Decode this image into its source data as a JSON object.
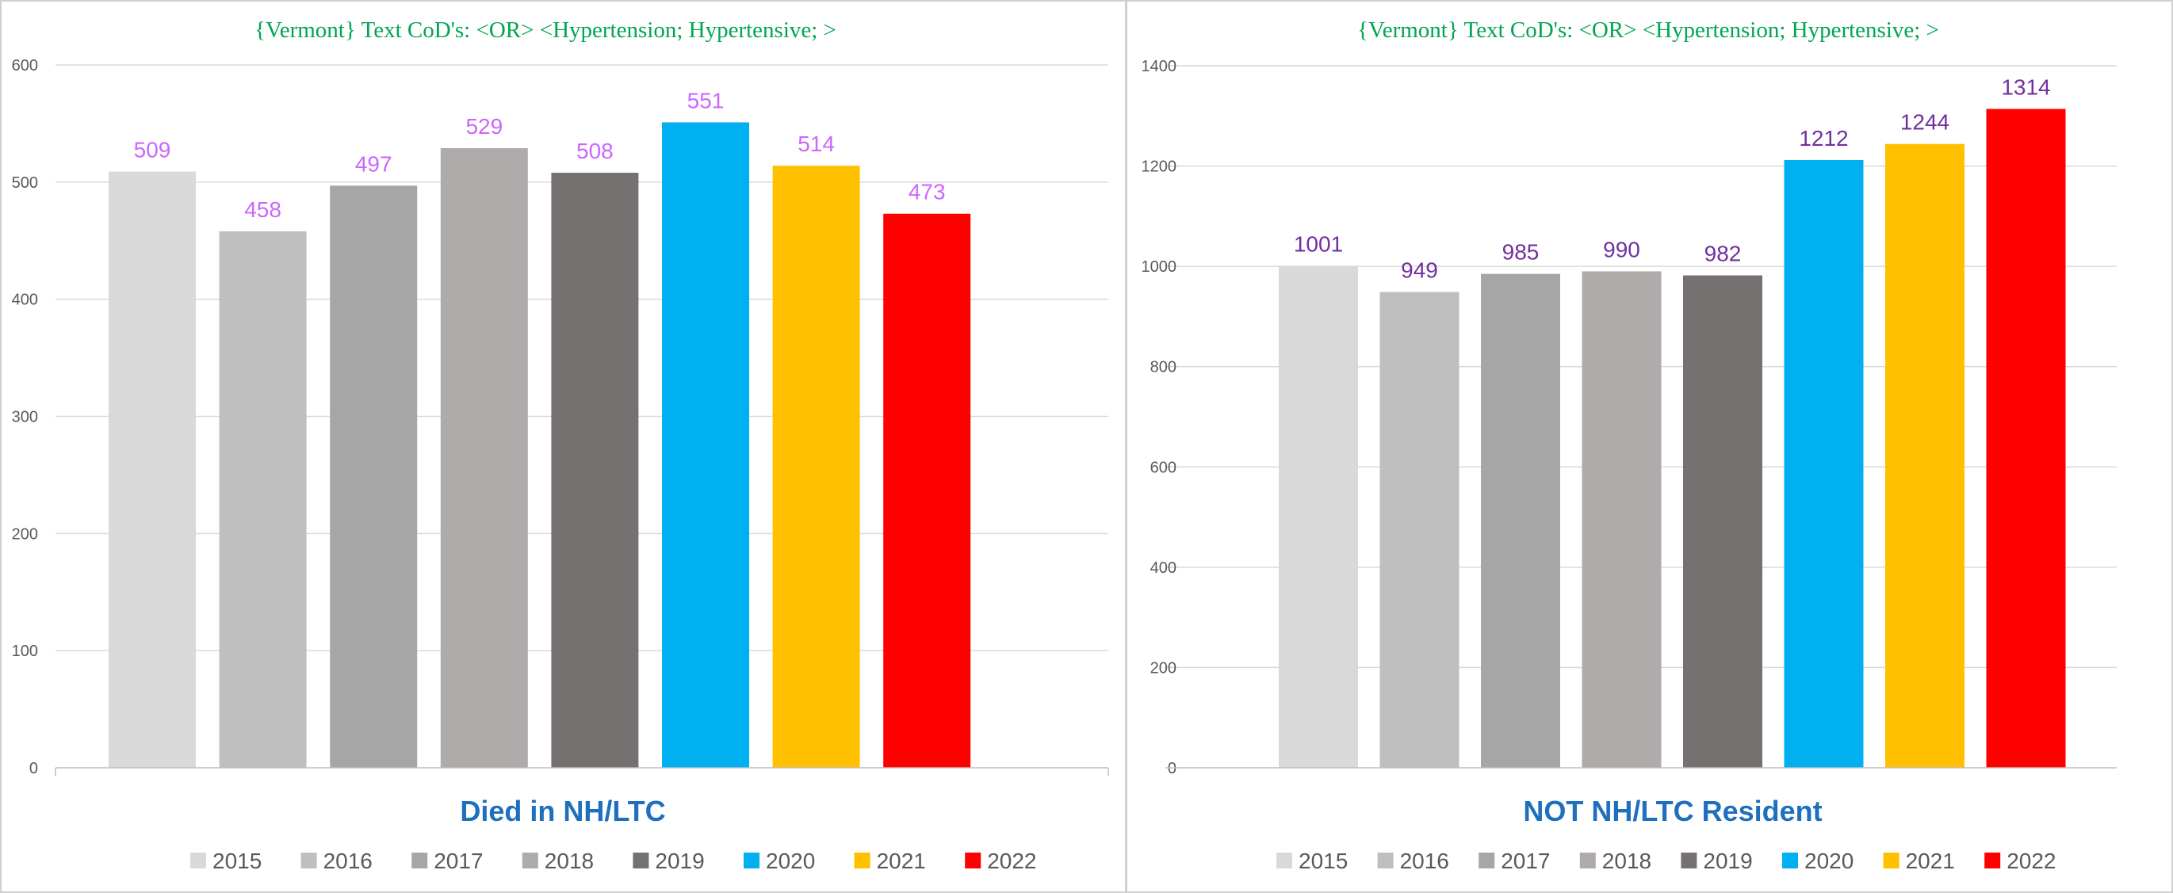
{
  "chart_data": [
    {
      "type": "bar",
      "title": "{Vermont}   Text CoD's: <OR> <Hypertension;  Hypertensive; >",
      "xlabel": "Died  in NH/LTC",
      "ylabel": "",
      "ylim": [
        0,
        600
      ],
      "yticks": [
        0,
        100,
        200,
        300,
        400,
        500,
        600
      ],
      "categories": [
        "2015",
        "2016",
        "2017",
        "2018",
        "2019",
        "2020",
        "2021",
        "2022"
      ],
      "values": [
        509,
        458,
        497,
        529,
        508,
        551,
        514,
        473
      ],
      "colors": [
        "#d9d9d9",
        "#bfbfbf",
        "#a6a6a6",
        "#afabab",
        "#767171",
        "#00b0f0",
        "#ffc000",
        "#ff0000"
      ],
      "label_color": "#cc66ff",
      "grid": true,
      "legend": "bottom"
    },
    {
      "type": "bar",
      "title": "{Vermont}   Text CoD's: <OR> <Hypertension;  Hypertensive; >",
      "xlabel": "NOT NH/LTC Resident",
      "ylabel": "",
      "ylim": [
        0,
        1400
      ],
      "yticks": [
        0,
        200,
        400,
        600,
        800,
        1000,
        1200,
        1400
      ],
      "categories": [
        "2015",
        "2016",
        "2017",
        "2018",
        "2019",
        "2020",
        "2021",
        "2022"
      ],
      "values": [
        1001,
        949,
        985,
        990,
        982,
        1212,
        1244,
        1314
      ],
      "colors": [
        "#d9d9d9",
        "#bfbfbf",
        "#a6a6a6",
        "#afabab",
        "#767171",
        "#00b0f0",
        "#ffc000",
        "#ff0000"
      ],
      "label_color": "#7030a0",
      "grid": true,
      "legend": "bottom"
    }
  ]
}
